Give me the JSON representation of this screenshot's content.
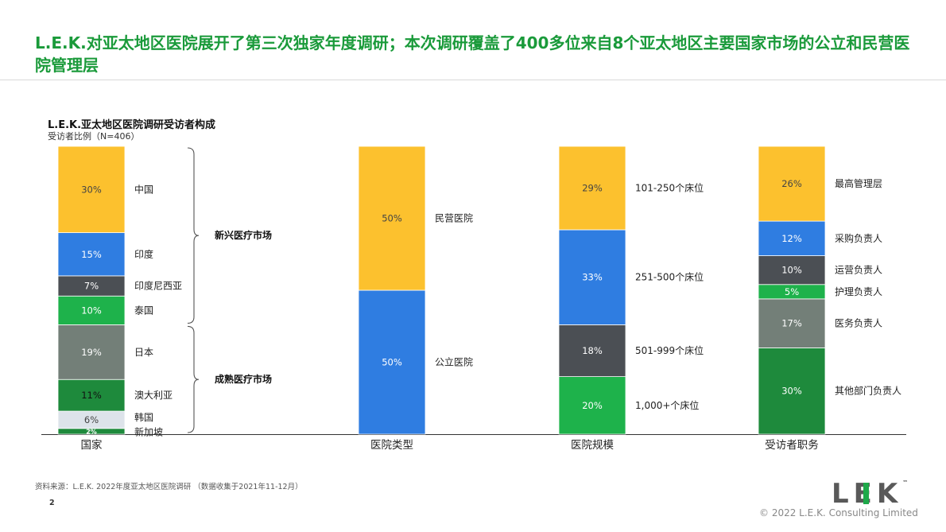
{
  "page": {
    "title": "L.E.K.对亚太地区医院展开了第三次独家年度调研；本次调研覆盖了400多位来自8个亚太地区主要国家市场的公立和民营医院管理层",
    "source": "资料来源：L.E.K. 2022年度亚太地区医院调研 （数据收集于2021年11-12月）",
    "page_number": "2",
    "copyright": "© 2022 L.E.K. Consulting Limited",
    "logo": "LEK",
    "logo_tm": "™"
  },
  "chart_data": {
    "type": "stacked-bar-100",
    "title": "L.E.K.亚太地区医院调研受访者构成",
    "subtitle": "受访者比例（N=406）",
    "ylim": [
      0,
      100
    ],
    "bars": [
      {
        "category": "国家",
        "segments": [
          {
            "label": "新加坡",
            "value": 2,
            "value_label": "2%",
            "color": "#1e8a3c",
            "text_color": "#ffffff"
          },
          {
            "label": "韩国",
            "value": 6,
            "value_label": "6%",
            "color": "#dde3ea",
            "text_color": "#444444"
          },
          {
            "label": "澳大利亚",
            "value": 11,
            "value_label": "11%",
            "color": "#1e8a3c",
            "text_color": "#111111"
          },
          {
            "label": "日本",
            "value": 19,
            "value_label": "19%",
            "color": "#737f78",
            "text_color": "#ffffff"
          },
          {
            "label": "泰国",
            "value": 10,
            "value_label": "10%",
            "color": "#1eb24b",
            "text_color": "#ffffff"
          },
          {
            "label": "印度尼西亚",
            "value": 7,
            "value_label": "7%",
            "color": "#4b4f54",
            "text_color": "#ffffff"
          },
          {
            "label": "印度",
            "value": 15,
            "value_label": "15%",
            "color": "#2f7de1",
            "text_color": "#ffffff"
          },
          {
            "label": "中国",
            "value": 30,
            "value_label": "30%",
            "color": "#fcc12e",
            "text_color": "#444444"
          }
        ],
        "groups": [
          {
            "label": "成熟医疗市场",
            "from": 0,
            "to": 38
          },
          {
            "label": "新兴医疗市场",
            "from": 38,
            "to": 100
          }
        ]
      },
      {
        "category": "医院类型",
        "segments": [
          {
            "label": "公立医院",
            "value": 50,
            "value_label": "50%",
            "color": "#2f7de1",
            "text_color": "#ffffff"
          },
          {
            "label": "民营医院",
            "value": 50,
            "value_label": "50%",
            "color": "#fcc12e",
            "text_color": "#444444"
          }
        ]
      },
      {
        "category": "医院规模",
        "segments": [
          {
            "label": "1,000+个床位",
            "value": 20,
            "value_label": "20%",
            "color": "#1eb24b",
            "text_color": "#ffffff"
          },
          {
            "label": "501-999个床位",
            "value": 18,
            "value_label": "18%",
            "color": "#4b4f54",
            "text_color": "#ffffff"
          },
          {
            "label": "251-500个床位",
            "value": 33,
            "value_label": "33%",
            "color": "#2f7de1",
            "text_color": "#ffffff"
          },
          {
            "label": "101-250个床位",
            "value": 29,
            "value_label": "29%",
            "color": "#fcc12e",
            "text_color": "#444444"
          }
        ]
      },
      {
        "category": "受访者职务",
        "segments": [
          {
            "label": "其他部门负责人",
            "value": 30,
            "value_label": "30%",
            "color": "#1e8a3c",
            "text_color": "#ffffff"
          },
          {
            "label": "医务负责人",
            "value": 17,
            "value_label": "17%",
            "color": "#737f78",
            "text_color": "#ffffff"
          },
          {
            "label": "护理负责人",
            "value": 5,
            "value_label": "5%",
            "color": "#1eb24b",
            "text_color": "#ffffff"
          },
          {
            "label": "运营负责人",
            "value": 10,
            "value_label": "10%",
            "color": "#4b4f54",
            "text_color": "#ffffff"
          },
          {
            "label": "采购负责人",
            "value": 12,
            "value_label": "12%",
            "color": "#2f7de1",
            "text_color": "#ffffff"
          },
          {
            "label": "最高管理层",
            "value": 26,
            "value_label": "26%",
            "color": "#fcc12e",
            "text_color": "#444444"
          }
        ]
      }
    ]
  }
}
